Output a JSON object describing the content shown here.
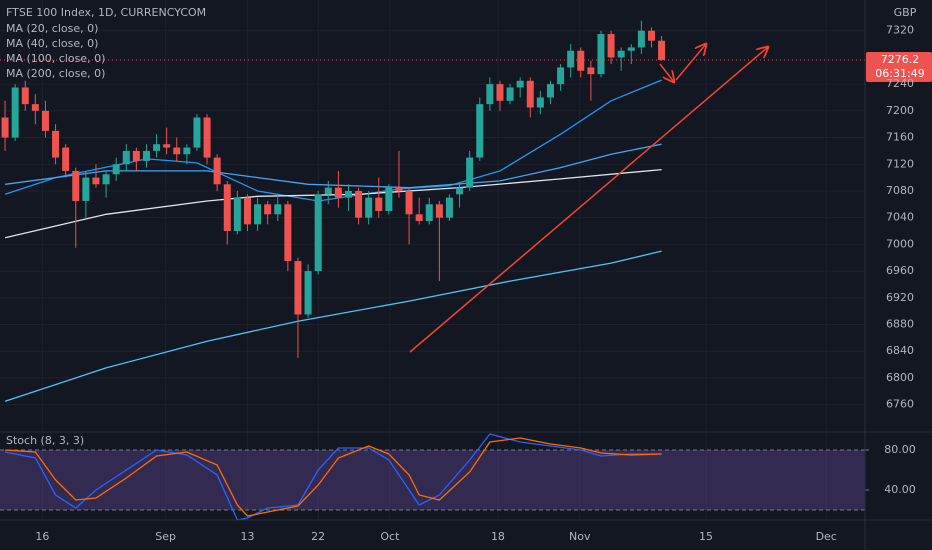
{
  "chart_data": {
    "type": "candlestick",
    "title": "FTSE 100 Index, 1D, CURRENCYCOM",
    "currency": "GBP",
    "grid": true,
    "colors": {
      "up": "#26a69a",
      "down": "#ef5350"
    },
    "xlim": [
      -0.5,
      85.14
    ],
    "xticks": [
      {
        "value": 3.7,
        "label": "16"
      },
      {
        "value": 15.9,
        "label": "Sep"
      },
      {
        "value": 24,
        "label": "13"
      },
      {
        "value": 31,
        "label": "22"
      },
      {
        "value": 38.1,
        "label": "Oct"
      },
      {
        "value": 48.8,
        "label": "18"
      },
      {
        "value": 56.9,
        "label": "Nov"
      },
      {
        "value": 69.4,
        "label": "15"
      },
      {
        "value": 81.3,
        "label": "Dec"
      }
    ],
    "ylim": [
      6719,
      7366
    ],
    "yticks": [
      6760,
      6800,
      6840,
      6880,
      6920,
      6960,
      7000,
      7040,
      7080,
      7120,
      7160,
      7200,
      7240,
      7320
    ],
    "open": [
      7190,
      7160,
      7235,
      7210,
      7200,
      7170,
      7145,
      7110,
      7065,
      7100,
      7090,
      7105,
      7120,
      7140,
      7125,
      7140,
      7150,
      7145,
      7135,
      7145,
      7190,
      7130,
      7090,
      7020,
      7070,
      7030,
      7060,
      7045,
      7060,
      6975,
      6895,
      6960,
      7075,
      7085,
      7070,
      7080,
      7040,
      7070,
      7050,
      7085,
      7080,
      7045,
      7035,
      7060,
      7040,
      7075,
      7085,
      7130,
      7210,
      7240,
      7215,
      7235,
      7245,
      7205,
      7220,
      7240,
      7265,
      7290,
      7265,
      7255,
      7315,
      7280,
      7290,
      7295,
      7320,
      7305
    ],
    "high": [
      7215,
      7240,
      7245,
      7225,
      7215,
      7180,
      7150,
      7115,
      7110,
      7120,
      7110,
      7130,
      7150,
      7145,
      7150,
      7165,
      7175,
      7160,
      7150,
      7195,
      7195,
      7135,
      7095,
      7080,
      7075,
      7070,
      7065,
      7075,
      7065,
      6980,
      6970,
      7080,
      7095,
      7110,
      7090,
      7085,
      7080,
      7100,
      7090,
      7140,
      7085,
      7070,
      7070,
      7065,
      7075,
      7090,
      7140,
      7220,
      7250,
      7245,
      7240,
      7250,
      7250,
      7230,
      7245,
      7270,
      7300,
      7295,
      7275,
      7320,
      7320,
      7295,
      7300,
      7335,
      7325,
      7312
    ],
    "low": [
      7140,
      7155,
      7200,
      7180,
      7160,
      7120,
      7100,
      6995,
      7040,
      7085,
      7070,
      7095,
      7110,
      7110,
      7115,
      7130,
      7135,
      7125,
      7120,
      7140,
      7120,
      7080,
      7000,
      7015,
      7020,
      7020,
      7030,
      7035,
      6960,
      6830,
      6890,
      6955,
      7060,
      7055,
      7050,
      7030,
      7030,
      7040,
      7045,
      7070,
      7000,
      7030,
      7030,
      6945,
      7035,
      7055,
      7080,
      7125,
      7200,
      7200,
      7210,
      7220,
      7190,
      7195,
      7210,
      7230,
      7250,
      7250,
      7215,
      7250,
      7270,
      7260,
      7270,
      7285,
      7295,
      7275
    ],
    "close": [
      7160,
      7235,
      7210,
      7200,
      7170,
      7130,
      7110,
      7065,
      7100,
      7090,
      7105,
      7120,
      7140,
      7125,
      7140,
      7150,
      7145,
      7135,
      7145,
      7190,
      7130,
      7090,
      7020,
      7070,
      7030,
      7060,
      7045,
      7060,
      6975,
      6895,
      6960,
      7075,
      7085,
      7070,
      7080,
      7040,
      7070,
      7050,
      7085,
      7080,
      7045,
      7035,
      7060,
      7040,
      7070,
      7085,
      7130,
      7210,
      7240,
      7215,
      7235,
      7245,
      7205,
      7220,
      7240,
      7265,
      7290,
      7260,
      7255,
      7315,
      7280,
      7290,
      7295,
      7320,
      7305,
      7276.2
    ],
    "last_price": 7276.2,
    "countdown": "06:31:49",
    "overlays": [
      {
        "name": "MA (20, close, 0)",
        "color": "#2196f3",
        "x": [
          0,
          5,
          14,
          19,
          25,
          31,
          39,
          44,
          49,
          55,
          60,
          65
        ],
        "values": [
          7075,
          7100,
          7128,
          7122,
          7080,
          7065,
          7083,
          7088,
          7110,
          7165,
          7215,
          7246
        ]
      },
      {
        "name": "MA (40, close, 0)",
        "color": "#42a5f5",
        "x": [
          0,
          10,
          20,
          30,
          40,
          49,
          55,
          60,
          65
        ],
        "values": [
          7090,
          7110,
          7110,
          7090,
          7085,
          7095,
          7115,
          7135,
          7150
        ]
      },
      {
        "name": "MA (100, close, 0)",
        "color": "#e0e3eb",
        "x": [
          0,
          10,
          20,
          25,
          35,
          45,
          55,
          65
        ],
        "values": [
          7010,
          7045,
          7065,
          7072,
          7075,
          7085,
          7098,
          7112
        ]
      },
      {
        "name": "MA (200, close, 0)",
        "color": "#4fc3f7",
        "x": [
          0,
          10,
          20,
          29,
          40,
          50,
          60,
          65
        ],
        "values": [
          6765,
          6815,
          6855,
          6885,
          6915,
          6945,
          6972,
          6990
        ]
      }
    ],
    "indicator": {
      "type": "line",
      "title": "Stoch (8, 3, 3)",
      "ylim": [
        10,
        98
      ],
      "yticks": [
        {
          "value": 80,
          "label": "80.00"
        },
        {
          "value": 40,
          "label": "40.00"
        }
      ],
      "bands": [
        20,
        80
      ],
      "band_color": "#7e57c2",
      "series": [
        {
          "color": "#2962ff",
          "x": [
            0,
            3,
            5,
            7,
            9,
            12,
            15,
            18,
            21,
            23,
            24,
            26,
            29,
            31,
            33,
            36,
            38,
            40,
            41,
            43,
            46,
            48,
            51,
            54,
            57,
            59,
            62,
            65
          ],
          "values": [
            78,
            72,
            35,
            22,
            40,
            60,
            80,
            75,
            55,
            10,
            12,
            22,
            25,
            60,
            82,
            82,
            70,
            40,
            25,
            35,
            70,
            96,
            88,
            84,
            80,
            74,
            76,
            76
          ]
        },
        {
          "color": "#ff6d00",
          "x": [
            0,
            3,
            5,
            7,
            9,
            12,
            15,
            18,
            21,
            23,
            24,
            26,
            29,
            31,
            33,
            36,
            38,
            40,
            41,
            43,
            46,
            48,
            51,
            54,
            57,
            59,
            62,
            65
          ],
          "values": [
            80,
            78,
            50,
            30,
            32,
            52,
            74,
            78,
            65,
            25,
            14,
            18,
            24,
            45,
            72,
            84,
            76,
            55,
            35,
            30,
            58,
            88,
            92,
            86,
            82,
            77,
            75,
            76
          ]
        }
      ]
    }
  }
}
